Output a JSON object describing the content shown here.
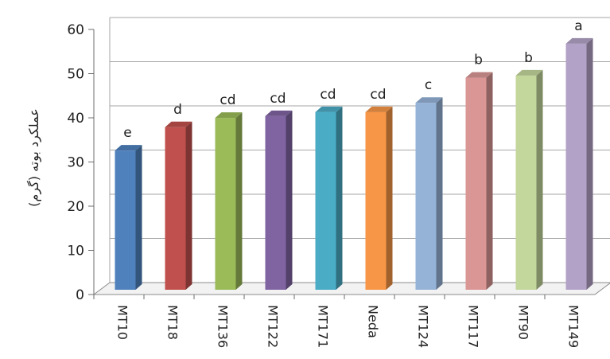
{
  "chart_data": {
    "type": "bar",
    "title": "",
    "xlabel": "",
    "ylabel": "عملکرد بوته (گرم)",
    "ylim": [
      0,
      60
    ],
    "yticks": [
      0,
      10,
      20,
      30,
      40,
      50,
      60
    ],
    "grid": true,
    "categories": [
      "MT10",
      "MT18",
      "MT136",
      "MT122",
      "MT171",
      "Neda",
      "MT124",
      "MT117",
      "MT90",
      "MT149"
    ],
    "values": [
      31.5,
      36.8,
      38.9,
      39.3,
      40.2,
      40.2,
      42.3,
      48.0,
      48.5,
      55.7
    ],
    "labels": [
      "e",
      "d",
      "cd",
      "cd",
      "cd",
      "cd",
      "c",
      "b",
      "b",
      "a"
    ],
    "colors": [
      "#4f81bd",
      "#c0504d",
      "#9bbb59",
      "#8064a2",
      "#4bacc6",
      "#f79646",
      "#95b3d7",
      "#d99694",
      "#c3d69b",
      "#b3a2c7"
    ]
  }
}
